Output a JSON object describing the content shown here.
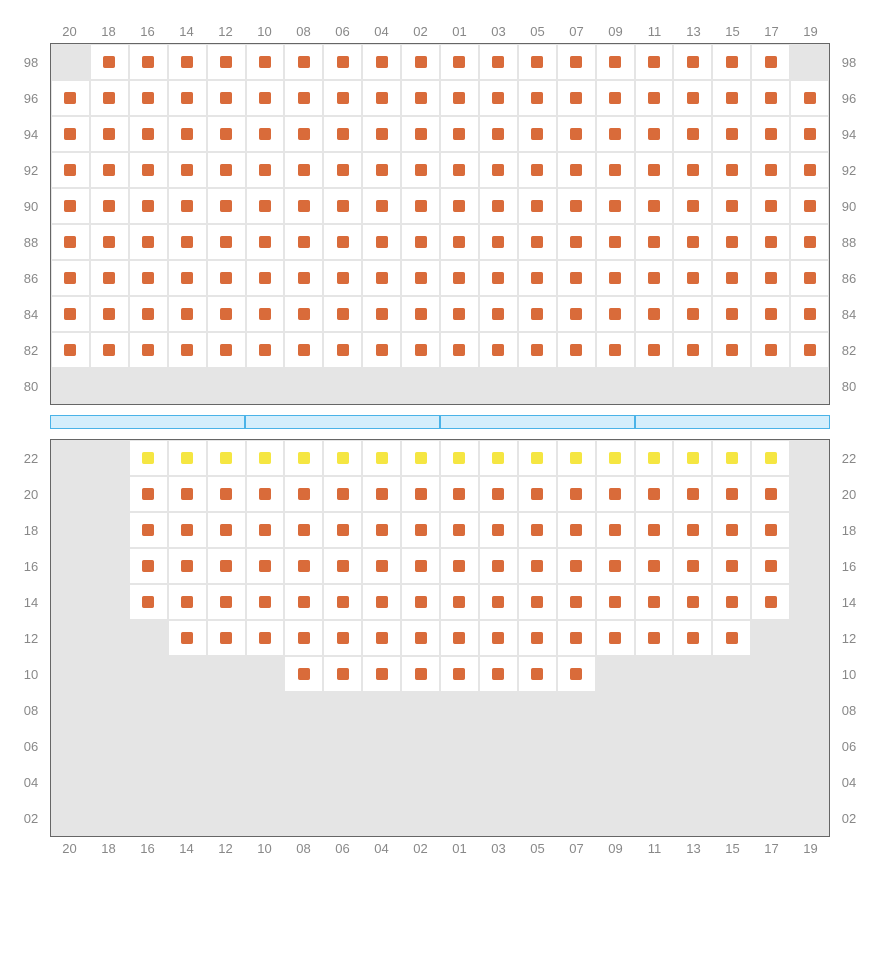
{
  "cols": [
    "20",
    "18",
    "16",
    "14",
    "12",
    "10",
    "08",
    "06",
    "04",
    "02",
    "01",
    "03",
    "05",
    "07",
    "09",
    "11",
    "13",
    "15",
    "17",
    "19"
  ],
  "colors": {
    "seat_orange": "#d96b3a",
    "seat_yellow": "#f5e642",
    "unavail_bg": "#e5e5e5",
    "avail_bg": "#ffffff",
    "grid_line": "#e5e5e5",
    "label": "#888888",
    "divider_fill": "#d4eefc",
    "divider_border": "#4ab3e8",
    "section_border": "#666666"
  },
  "divider_segments": 4,
  "upper": {
    "rows": [
      "98",
      "96",
      "94",
      "92",
      "90",
      "88",
      "86",
      "84",
      "82",
      "80"
    ],
    "cells": [
      [
        "u",
        "o",
        "o",
        "o",
        "o",
        "o",
        "o",
        "o",
        "o",
        "o",
        "o",
        "o",
        "o",
        "o",
        "o",
        "o",
        "o",
        "o",
        "o",
        "u"
      ],
      [
        "o",
        "o",
        "o",
        "o",
        "o",
        "o",
        "o",
        "o",
        "o",
        "o",
        "o",
        "o",
        "o",
        "o",
        "o",
        "o",
        "o",
        "o",
        "o",
        "o"
      ],
      [
        "o",
        "o",
        "o",
        "o",
        "o",
        "o",
        "o",
        "o",
        "o",
        "o",
        "o",
        "o",
        "o",
        "o",
        "o",
        "o",
        "o",
        "o",
        "o",
        "o"
      ],
      [
        "o",
        "o",
        "o",
        "o",
        "o",
        "o",
        "o",
        "o",
        "o",
        "o",
        "o",
        "o",
        "o",
        "o",
        "o",
        "o",
        "o",
        "o",
        "o",
        "o"
      ],
      [
        "o",
        "o",
        "o",
        "o",
        "o",
        "o",
        "o",
        "o",
        "o",
        "o",
        "o",
        "o",
        "o",
        "o",
        "o",
        "o",
        "o",
        "o",
        "o",
        "o"
      ],
      [
        "o",
        "o",
        "o",
        "o",
        "o",
        "o",
        "o",
        "o",
        "o",
        "o",
        "o",
        "o",
        "o",
        "o",
        "o",
        "o",
        "o",
        "o",
        "o",
        "o"
      ],
      [
        "o",
        "o",
        "o",
        "o",
        "o",
        "o",
        "o",
        "o",
        "o",
        "o",
        "o",
        "o",
        "o",
        "o",
        "o",
        "o",
        "o",
        "o",
        "o",
        "o"
      ],
      [
        "o",
        "o",
        "o",
        "o",
        "o",
        "o",
        "o",
        "o",
        "o",
        "o",
        "o",
        "o",
        "o",
        "o",
        "o",
        "o",
        "o",
        "o",
        "o",
        "o"
      ],
      [
        "o",
        "o",
        "o",
        "o",
        "o",
        "o",
        "o",
        "o",
        "o",
        "o",
        "o",
        "o",
        "o",
        "o",
        "o",
        "o",
        "o",
        "o",
        "o",
        "o"
      ],
      [
        "u",
        "u",
        "u",
        "u",
        "u",
        "u",
        "u",
        "u",
        "u",
        "u",
        "u",
        "u",
        "u",
        "u",
        "u",
        "u",
        "u",
        "u",
        "u",
        "u"
      ]
    ]
  },
  "lower": {
    "rows": [
      "22",
      "20",
      "18",
      "16",
      "14",
      "12",
      "10",
      "08",
      "06",
      "04",
      "02"
    ],
    "cells": [
      [
        "u",
        "u",
        "y",
        "y",
        "y",
        "y",
        "y",
        "y",
        "y",
        "y",
        "y",
        "y",
        "y",
        "y",
        "y",
        "y",
        "y",
        "y",
        "y",
        "u"
      ],
      [
        "u",
        "u",
        "o",
        "o",
        "o",
        "o",
        "o",
        "o",
        "o",
        "o",
        "o",
        "o",
        "o",
        "o",
        "o",
        "o",
        "o",
        "o",
        "o",
        "u"
      ],
      [
        "u",
        "u",
        "o",
        "o",
        "o",
        "o",
        "o",
        "o",
        "o",
        "o",
        "o",
        "o",
        "o",
        "o",
        "o",
        "o",
        "o",
        "o",
        "o",
        "u"
      ],
      [
        "u",
        "u",
        "o",
        "o",
        "o",
        "o",
        "o",
        "o",
        "o",
        "o",
        "o",
        "o",
        "o",
        "o",
        "o",
        "o",
        "o",
        "o",
        "o",
        "u"
      ],
      [
        "u",
        "u",
        "o",
        "o",
        "o",
        "o",
        "o",
        "o",
        "o",
        "o",
        "o",
        "o",
        "o",
        "o",
        "o",
        "o",
        "o",
        "o",
        "o",
        "u"
      ],
      [
        "u",
        "u",
        "u",
        "o",
        "o",
        "o",
        "o",
        "o",
        "o",
        "o",
        "o",
        "o",
        "o",
        "o",
        "o",
        "o",
        "o",
        "o",
        "u",
        "u"
      ],
      [
        "u",
        "u",
        "u",
        "u",
        "u",
        "u",
        "o",
        "o",
        "o",
        "o",
        "o",
        "o",
        "o",
        "o",
        "u",
        "u",
        "u",
        "u",
        "u",
        "u"
      ],
      [
        "u",
        "u",
        "u",
        "u",
        "u",
        "u",
        "u",
        "u",
        "u",
        "u",
        "u",
        "u",
        "u",
        "u",
        "u",
        "u",
        "u",
        "u",
        "u",
        "u"
      ],
      [
        "u",
        "u",
        "u",
        "u",
        "u",
        "u",
        "u",
        "u",
        "u",
        "u",
        "u",
        "u",
        "u",
        "u",
        "u",
        "u",
        "u",
        "u",
        "u",
        "u"
      ],
      [
        "u",
        "u",
        "u",
        "u",
        "u",
        "u",
        "u",
        "u",
        "u",
        "u",
        "u",
        "u",
        "u",
        "u",
        "u",
        "u",
        "u",
        "u",
        "u",
        "u"
      ],
      [
        "u",
        "u",
        "u",
        "u",
        "u",
        "u",
        "u",
        "u",
        "u",
        "u",
        "u",
        "u",
        "u",
        "u",
        "u",
        "u",
        "u",
        "u",
        "u",
        "u"
      ]
    ]
  }
}
